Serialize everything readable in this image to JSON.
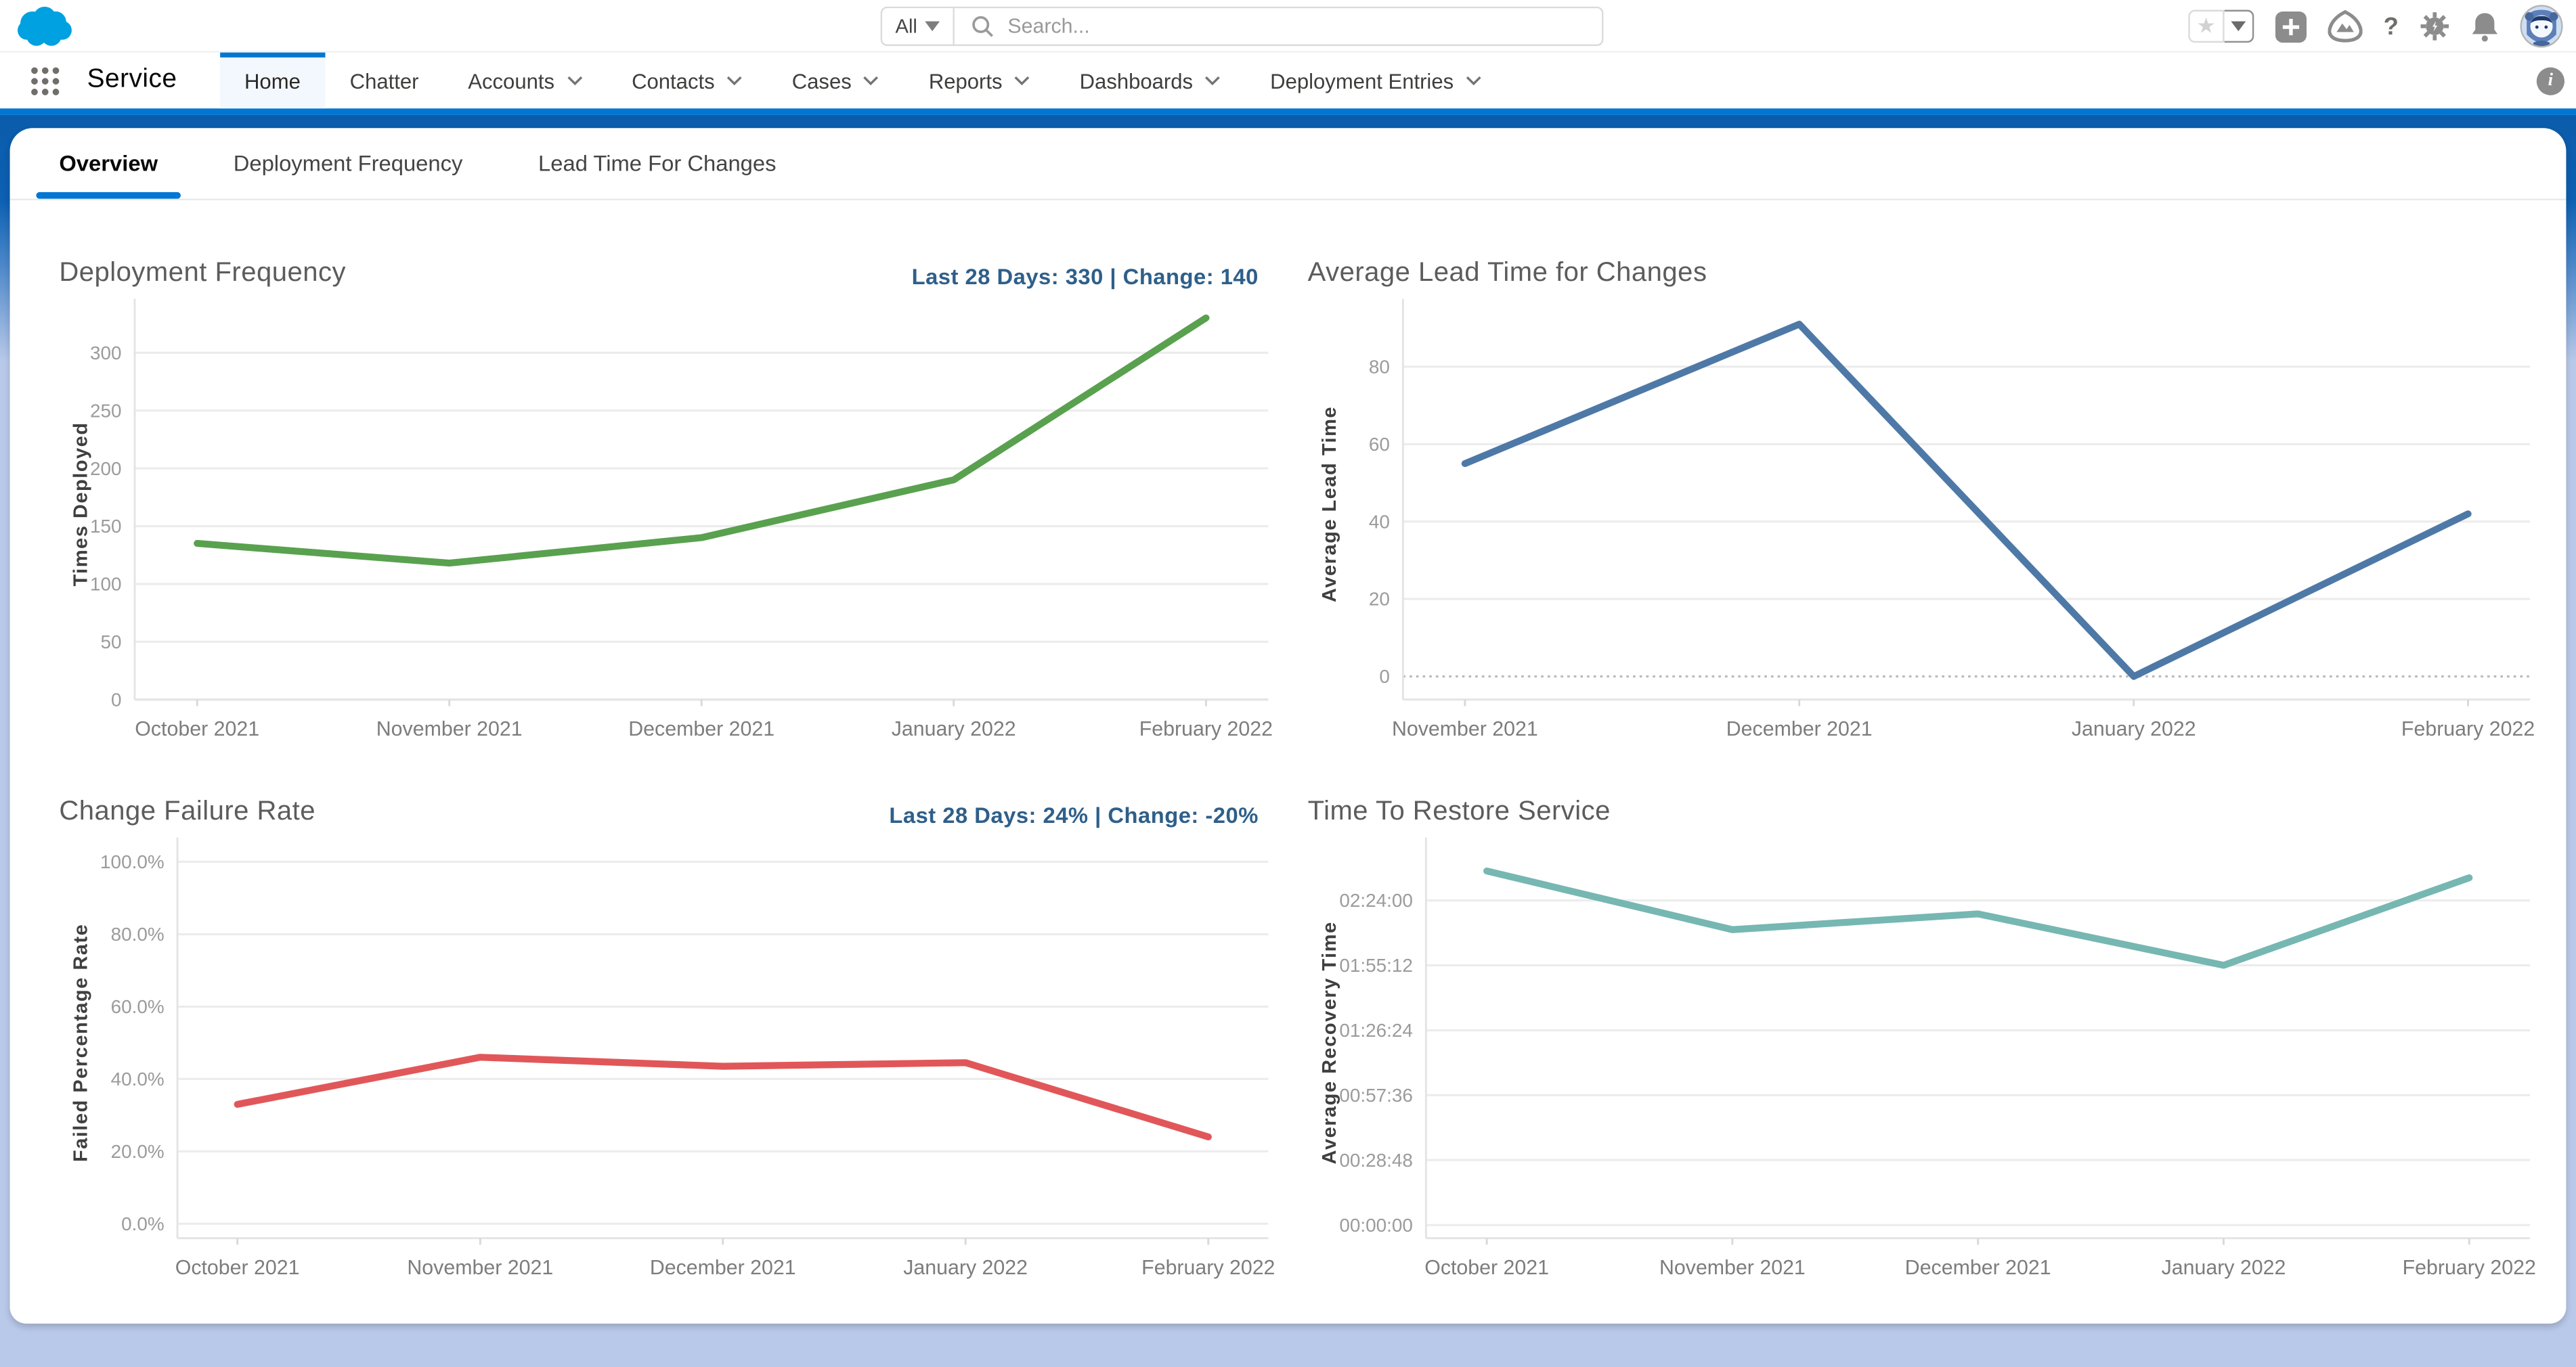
{
  "colors": {
    "brand_cloud": "#00a1e0",
    "accent_blue": "#0176d3",
    "band_blue": "#0b5cab",
    "page_background": "#b9c9e9",
    "badge_text": "#2e5f8a"
  },
  "header": {
    "search": {
      "scope": "All",
      "placeholder": "Search..."
    },
    "icon_names": [
      "favorites-star-icon",
      "favorites-expand-icon",
      "quick-add-icon",
      "guidance-center-icon",
      "help-icon",
      "setup-gear-icon",
      "notifications-bell-icon",
      "user-avatar"
    ]
  },
  "nav": {
    "app_name": "Service",
    "tabs": [
      {
        "label": "Home",
        "active": true,
        "menu": false
      },
      {
        "label": "Chatter",
        "active": false,
        "menu": false
      },
      {
        "label": "Accounts",
        "active": false,
        "menu": true
      },
      {
        "label": "Contacts",
        "active": false,
        "menu": true
      },
      {
        "label": "Cases",
        "active": false,
        "menu": true
      },
      {
        "label": "Reports",
        "active": false,
        "menu": true
      },
      {
        "label": "Dashboards",
        "active": false,
        "menu": true
      },
      {
        "label": "Deployment Entries",
        "active": false,
        "menu": true
      }
    ],
    "info_icon": "info-icon"
  },
  "subtabs": [
    {
      "label": "Overview",
      "active": true
    },
    {
      "label": "Deployment Frequency",
      "active": false
    },
    {
      "label": "Lead Time For Changes",
      "active": false
    }
  ],
  "chart_data": [
    {
      "type": "line",
      "title": "Deployment Frequency",
      "summary": "Last 28 Days: 330 | Change: 140",
      "xlabel": "",
      "ylabel": "Times Deployed",
      "color": "#59a14f",
      "categories": [
        "October 2021",
        "November 2021",
        "December 2021",
        "January 2022",
        "February 2022"
      ],
      "values": [
        135,
        118,
        140,
        190,
        330
      ],
      "ylim": [
        0,
        338
      ],
      "yticks": [
        {
          "v": 0,
          "label": "0"
        },
        {
          "v": 50,
          "label": "50"
        },
        {
          "v": 100,
          "label": "100"
        },
        {
          "v": 150,
          "label": "150"
        },
        {
          "v": 200,
          "label": "200"
        },
        {
          "v": 250,
          "label": "250"
        },
        {
          "v": 300,
          "label": "300"
        }
      ],
      "grid": true,
      "legend": "none"
    },
    {
      "type": "line",
      "title": "Average Lead Time for Changes",
      "summary": "",
      "xlabel": "",
      "ylabel": "Average Lead Time",
      "color": "#4e79a7",
      "categories": [
        "November 2021",
        "December 2021",
        "January 2022",
        "February 2022"
      ],
      "values": [
        55,
        91,
        0,
        42
      ],
      "ylim": [
        -6,
        95
      ],
      "yticks": [
        {
          "v": 0,
          "label": "0",
          "dotted": true
        },
        {
          "v": 20,
          "label": "20"
        },
        {
          "v": 40,
          "label": "40"
        },
        {
          "v": 60,
          "label": "60"
        },
        {
          "v": 80,
          "label": "80"
        }
      ],
      "grid": true,
      "legend": "none"
    },
    {
      "type": "line",
      "title": "Change Failure Rate",
      "summary": "Last 28 Days: 24% | Change: -20%",
      "xlabel": "",
      "ylabel": "Failed Percentage Rate",
      "color": "#e15759",
      "categories": [
        "October 2021",
        "November 2021",
        "December 2021",
        "January 2022",
        "February 2022"
      ],
      "values": [
        33,
        46,
        43.5,
        44.5,
        24
      ],
      "value_unit": "%",
      "ylim": [
        -4,
        104
      ],
      "yticks": [
        {
          "v": 0,
          "label": "0.0%"
        },
        {
          "v": 20,
          "label": "20.0%"
        },
        {
          "v": 40,
          "label": "40.0%"
        },
        {
          "v": 60,
          "label": "60.0%"
        },
        {
          "v": 80,
          "label": "80.0%"
        },
        {
          "v": 100,
          "label": "100.0%"
        }
      ],
      "grid": true,
      "legend": "none"
    },
    {
      "type": "line",
      "title": "Time To Restore Service",
      "summary": "",
      "xlabel": "",
      "ylabel": "Average Recovery Time",
      "color": "#76b7b2",
      "categories": [
        "October 2021",
        "November 2021",
        "December 2021",
        "January 2022",
        "February 2022"
      ],
      "values": [
        9420,
        7860,
        8280,
        6912,
        9240
      ],
      "value_labels": [
        "02:37:00",
        "02:11:00",
        "02:18:00",
        "01:55:12",
        "02:34:00"
      ],
      "value_unit": "hh:mm:ss (seconds)",
      "ylim": [
        -350,
        10050
      ],
      "yticks": [
        {
          "v": 0,
          "label": "00:00:00"
        },
        {
          "v": 1728,
          "label": "00:28:48"
        },
        {
          "v": 3456,
          "label": "00:57:36"
        },
        {
          "v": 5184,
          "label": "01:26:24"
        },
        {
          "v": 6912,
          "label": "01:55:12"
        },
        {
          "v": 8640,
          "label": "02:24:00"
        }
      ],
      "grid": true,
      "legend": "none"
    }
  ]
}
